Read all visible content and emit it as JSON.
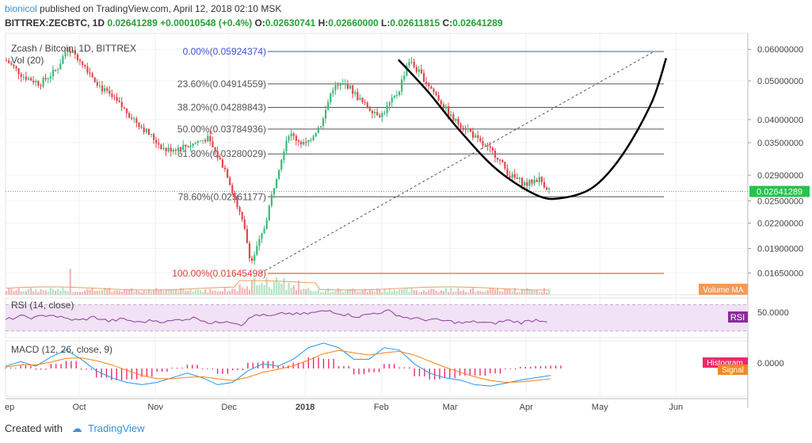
{
  "header": {
    "author": "bionicol",
    "published_text": "published on TradingView.com, April 12, 2018 02:10 MSK",
    "symbol_line": "BITTREX:ZECBTC, 1D",
    "last": "0.02641289",
    "change": "+0.00010548 (+0.4%)",
    "o_label": "O:",
    "o_value": "0.02630741",
    "h_label": "H:",
    "h_value": "0.02660000",
    "l_label": "L:",
    "l_value": "0.02611815",
    "c_label": "C:",
    "c_value": "0.02641289"
  },
  "footer": {
    "created_with": "Created with",
    "brand": "TradingView"
  },
  "colors": {
    "up": "#26a69a",
    "up_body": "#3cb878",
    "down": "#e0474c",
    "fib": "#555555",
    "fib_top": "#3f51d8",
    "fib_bottom": "#e53935",
    "rsi": "#8e3b9a",
    "macd": "#2196f3",
    "signal": "#ff7f0e",
    "hist": "#e91e63"
  },
  "chart_data": [
    {
      "type": "candlestick",
      "title": "Zcash / Bitcoin, 1D, BITTREX",
      "volume_label": "Vol (20)",
      "volume_ma_label": "Volume MA",
      "last_price_label": "0.02641289",
      "ylim": [
        0.0155,
        0.065
      ],
      "y_scale": "log",
      "y_ticks": [
        "0.06000000",
        "0.05000000",
        "0.04000000",
        "0.03500000",
        "0.02900000",
        "0.02500000",
        "0.02200000",
        "0.01900000",
        "0.01650000"
      ],
      "x_ticks": [
        "ep",
        "Oct",
        "Nov",
        "Dec",
        "2018",
        "Feb",
        "Mar",
        "Apr",
        "May",
        "Jun"
      ],
      "price_path": [
        [
          "2017-09-01",
          0.0565
        ],
        [
          "2017-09-08",
          0.0515
        ],
        [
          "2017-09-15",
          0.0492
        ],
        [
          "2017-09-22",
          0.0535
        ],
        [
          "2017-09-26",
          0.0605
        ],
        [
          "2017-10-01",
          0.057
        ],
        [
          "2017-10-10",
          0.048
        ],
        [
          "2017-10-20",
          0.042
        ],
        [
          "2017-10-28",
          0.0375
        ],
        [
          "2017-11-05",
          0.0335
        ],
        [
          "2017-11-15",
          0.0345
        ],
        [
          "2017-11-22",
          0.036
        ],
        [
          "2017-11-30",
          0.0295
        ],
        [
          "2017-12-07",
          0.0215
        ],
        [
          "2017-12-10",
          0.0175
        ],
        [
          "2017-12-15",
          0.021
        ],
        [
          "2017-12-20",
          0.0285
        ],
        [
          "2017-12-25",
          0.037
        ],
        [
          "2018-01-01",
          0.0345
        ],
        [
          "2018-01-08",
          0.0395
        ],
        [
          "2018-01-12",
          0.048
        ],
        [
          "2018-01-18",
          0.049
        ],
        [
          "2018-01-25",
          0.0435
        ],
        [
          "2018-02-01",
          0.041
        ],
        [
          "2018-02-08",
          0.047
        ],
        [
          "2018-02-12",
          0.0565
        ],
        [
          "2018-02-18",
          0.051
        ],
        [
          "2018-02-25",
          0.0445
        ],
        [
          "2018-03-02",
          0.04
        ],
        [
          "2018-03-08",
          0.038
        ],
        [
          "2018-03-13",
          0.035
        ],
        [
          "2018-03-20",
          0.0325
        ],
        [
          "2018-03-25",
          0.029
        ],
        [
          "2018-04-01",
          0.0275
        ],
        [
          "2018-04-06",
          0.0285
        ],
        [
          "2018-04-11",
          0.0264
        ]
      ],
      "fib_levels": [
        {
          "label": "0.00%(0.05924374)",
          "value": 0.05924374
        },
        {
          "label": "23.60%(0.04914559)",
          "value": 0.04914559
        },
        {
          "label": "38.20%(0.04289843)",
          "value": 0.04289843
        },
        {
          "label": "50.00%(0.03784936)",
          "value": 0.03784936
        },
        {
          "label": "61.80%(0.03280029)",
          "value": 0.03280029
        },
        {
          "label": "78.60%(0.02561177)",
          "value": 0.02561177
        },
        {
          "label": "100.00%(0.01645498)",
          "value": 0.01645498
        }
      ],
      "projection_curve": [
        [
          "2018-02-08",
          0.0565
        ],
        [
          "2018-02-20",
          0.047
        ],
        [
          "2018-03-05",
          0.0375
        ],
        [
          "2018-03-20",
          0.03
        ],
        [
          "2018-04-05",
          0.0259
        ],
        [
          "2018-04-15",
          0.0254
        ],
        [
          "2018-04-28",
          0.027
        ],
        [
          "2018-05-10",
          0.0325
        ],
        [
          "2018-05-22",
          0.044
        ],
        [
          "2018-05-28",
          0.057
        ]
      ],
      "trend_line": [
        [
          "2017-12-14",
          0.0165
        ],
        [
          "2018-05-23",
          0.0592
        ]
      ]
    },
    {
      "type": "line",
      "title": "RSI (14, close)",
      "badge": "RSI",
      "y_ticks": [
        "50.0000"
      ],
      "ylim": [
        20,
        80
      ],
      "band": [
        30,
        70
      ],
      "series": [
        {
          "values": [
            47,
            52,
            50,
            55,
            49,
            46,
            51,
            45,
            48,
            43,
            46,
            44,
            48,
            50,
            41,
            46,
            40,
            55,
            52,
            57,
            55,
            58,
            61,
            55,
            52,
            57,
            60,
            51,
            48,
            47,
            45,
            42,
            44,
            41,
            46,
            43,
            47,
            45
          ]
        }
      ]
    },
    {
      "type": "line",
      "title": "MACD (12, 26, close, 9)",
      "badges": [
        "Histogram",
        "Signal"
      ],
      "y_ticks": [
        "0.0000"
      ],
      "ylim": [
        -0.006,
        0.006
      ],
      "macd": [
        0.0005,
        0.0015,
        0.0005,
        0.0025,
        0.004,
        0.002,
        -0.0005,
        -0.002,
        -0.003,
        -0.0035,
        -0.003,
        -0.002,
        -0.001,
        -0.002,
        -0.0035,
        -0.003,
        -0.0005,
        0.001,
        0.0005,
        0.002,
        0.0045,
        0.0055,
        0.0045,
        0.002,
        0.002,
        0.0045,
        0.004,
        0.001,
        -0.001,
        -0.002,
        -0.0025,
        -0.0035,
        -0.0038,
        -0.0032,
        -0.0025,
        -0.002,
        -0.0015
      ],
      "signal": [
        0.0003,
        0.0008,
        0.0008,
        0.0014,
        0.0022,
        0.0023,
        0.0017,
        0.0008,
        -0.0004,
        -0.0015,
        -0.0022,
        -0.0022,
        -0.0019,
        -0.0018,
        -0.0022,
        -0.0026,
        -0.0019,
        -0.0008,
        -0.0002,
        0.0006,
        0.0018,
        0.0032,
        0.0039,
        0.0034,
        0.0029,
        0.0034,
        0.0037,
        0.0029,
        0.0016,
        0.0003,
        -0.0008,
        -0.0018,
        -0.0026,
        -0.003,
        -0.0029,
        -0.0026,
        -0.0022
      ]
    }
  ]
}
